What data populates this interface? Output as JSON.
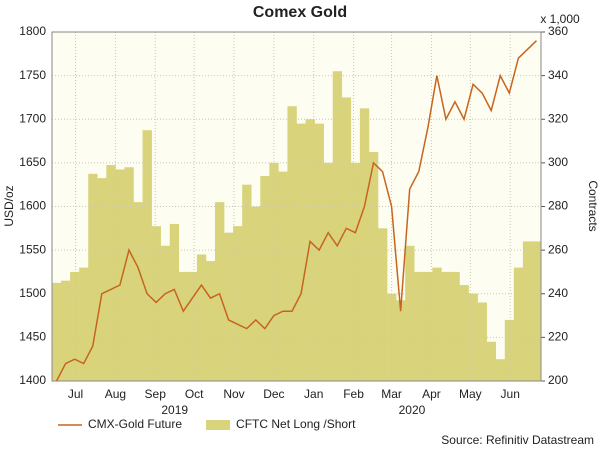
{
  "chart_data": {
    "type": "line",
    "title": "Comex Gold",
    "ylabel": "USD/oz",
    "y2label": "Contracts",
    "y2unit": "x 1,000",
    "source": "Source: Refinitiv Datastream",
    "year_labels": [
      "2019",
      "2020"
    ],
    "x": [
      0,
      1,
      2,
      3,
      4,
      5,
      6,
      7,
      8,
      9,
      10,
      11,
      12,
      13,
      14,
      15,
      16,
      17,
      18,
      19,
      20,
      21,
      22,
      23,
      24,
      25,
      26,
      27,
      28,
      29,
      30,
      31,
      32,
      33,
      34,
      35,
      36,
      37,
      38,
      39,
      40,
      41,
      42,
      43,
      44,
      45,
      46,
      47,
      48,
      49,
      50,
      51,
      52,
      53
    ],
    "xlim": [
      -0.5,
      53.5
    ],
    "xticks": [
      {
        "value": 2.1,
        "label": "Jul"
      },
      {
        "value": 6.5,
        "label": "Aug"
      },
      {
        "value": 10.9,
        "label": "Sep"
      },
      {
        "value": 15.2,
        "label": "Oct"
      },
      {
        "value": 19.6,
        "label": "Nov"
      },
      {
        "value": 24,
        "label": "Dec"
      },
      {
        "value": 28.4,
        "label": "Jan"
      },
      {
        "value": 32.8,
        "label": "Feb"
      },
      {
        "value": 37,
        "label": "Mar"
      },
      {
        "value": 41.4,
        "label": "Apr"
      },
      {
        "value": 45.7,
        "label": "May"
      },
      {
        "value": 50.1,
        "label": "Jun"
      }
    ],
    "ylim": [
      1400,
      1800
    ],
    "yticks": [
      1400,
      1450,
      1500,
      1550,
      1600,
      1650,
      1700,
      1750,
      1800
    ],
    "y2lim": [
      200,
      360
    ],
    "y2ticks": [
      200,
      220,
      240,
      260,
      280,
      300,
      320,
      340,
      360
    ],
    "grid": true,
    "legend": "bottom-left",
    "series": [
      {
        "name": "CMX-Gold Future",
        "type": "line",
        "color": "#c8641e",
        "values": [
          1400,
          1420,
          1425,
          1420,
          1440,
          1500,
          1505,
          1510,
          1550,
          1530,
          1500,
          1490,
          1500,
          1505,
          1480,
          1495,
          1510,
          1495,
          1500,
          1470,
          1465,
          1460,
          1470,
          1460,
          1475,
          1480,
          1480,
          1500,
          1560,
          1550,
          1570,
          1555,
          1575,
          1570,
          1600,
          1650,
          1640,
          1600,
          1480,
          1620,
          1640,
          1690,
          1750,
          1700,
          1720,
          1700,
          1740,
          1730,
          1710,
          1750,
          1730,
          1770,
          1780,
          1790
        ]
      },
      {
        "name": "CFTC Net Long /Short",
        "type": "bar",
        "axis": "y2",
        "color": "#d9d47c",
        "values": [
          245,
          246,
          250,
          252,
          295,
          293,
          299,
          297,
          298,
          282,
          315,
          271,
          262,
          272,
          250,
          250,
          258,
          255,
          282,
          268,
          271,
          290,
          280,
          294,
          300,
          296,
          326,
          318,
          320,
          318,
          300,
          342,
          330,
          300,
          325,
          305,
          270,
          240,
          237,
          262,
          250,
          250,
          252,
          250,
          250,
          244,
          240,
          236,
          218,
          210,
          228,
          252,
          264,
          264
        ]
      }
    ]
  }
}
